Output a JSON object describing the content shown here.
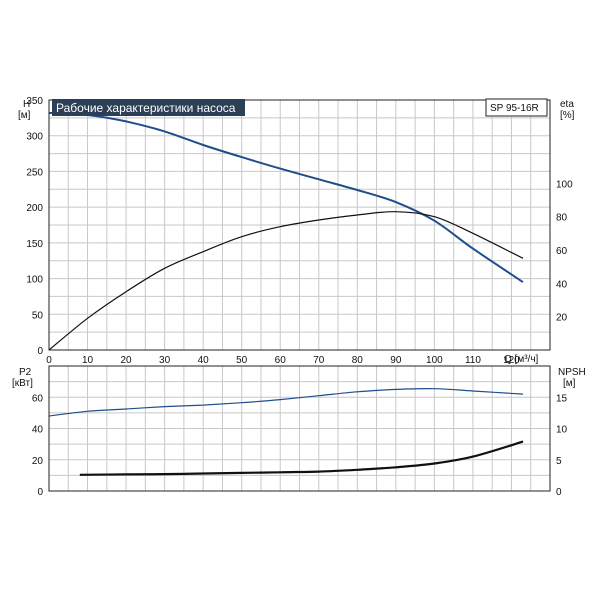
{
  "chart_data": [
    {
      "type": "line",
      "title": "Рабочие характеристики насоса",
      "model_label": "SP 95-16R",
      "y_left_label": [
        "H",
        "[м]"
      ],
      "y_right_label": [
        "eta",
        "[%]"
      ],
      "x_label": "Q [м³/ч]",
      "xlim": [
        0,
        130
      ],
      "ylim_left": [
        0,
        350
      ],
      "ylim_right": [
        0,
        150
      ],
      "x_ticks": [
        0,
        10,
        20,
        30,
        40,
        50,
        60,
        70,
        80,
        90,
        100,
        110,
        120
      ],
      "y_left_ticks": [
        0,
        50,
        100,
        150,
        200,
        250,
        300,
        350
      ],
      "y_right_ticks": [
        20,
        40,
        60,
        80,
        100
      ],
      "grid": true,
      "series": [
        {
          "axis": "left",
          "color": "#1f4e8a",
          "x": [
            0,
            10,
            20,
            30,
            40,
            50,
            60,
            70,
            80,
            90,
            100,
            110,
            123
          ],
          "values": [
            332,
            329,
            320,
            306,
            287,
            270,
            254,
            239,
            224,
            207,
            181,
            142,
            95
          ]
        },
        {
          "axis": "right",
          "color": "#111111",
          "x": [
            0,
            10,
            20,
            30,
            40,
            50,
            60,
            70,
            80,
            90,
            100,
            110,
            123
          ],
          "values": [
            0,
            19,
            35,
            49,
            59,
            68,
            74,
            78,
            81,
            83,
            80,
            70,
            55
          ]
        }
      ]
    },
    {
      "type": "line",
      "y_left_label": [
        "P2",
        "[кВт]"
      ],
      "y_right_label": [
        "NPSH",
        "[м]"
      ],
      "xlim": [
        0,
        130
      ],
      "ylim_left": [
        0,
        80
      ],
      "ylim_right": [
        0,
        20
      ],
      "y_left_ticks": [
        0,
        20,
        40,
        60
      ],
      "y_right_ticks": [
        0,
        5,
        10,
        15
      ],
      "grid": true,
      "series": [
        {
          "axis": "left",
          "color": "#1f4e8a",
          "x": [
            0,
            10,
            20,
            30,
            40,
            50,
            60,
            70,
            80,
            90,
            100,
            110,
            123
          ],
          "values": [
            48,
            51,
            52.5,
            54,
            55,
            56.5,
            58.5,
            61,
            63.5,
            65,
            65.5,
            64,
            62
          ]
        },
        {
          "axis": "right",
          "color": "#111111",
          "x": [
            8,
            20,
            30,
            40,
            50,
            60,
            70,
            80,
            90,
            100,
            110,
            123
          ],
          "values": [
            2.6,
            2.65,
            2.7,
            2.8,
            2.9,
            3.0,
            3.1,
            3.4,
            3.8,
            4.4,
            5.5,
            7.9
          ]
        }
      ]
    }
  ]
}
